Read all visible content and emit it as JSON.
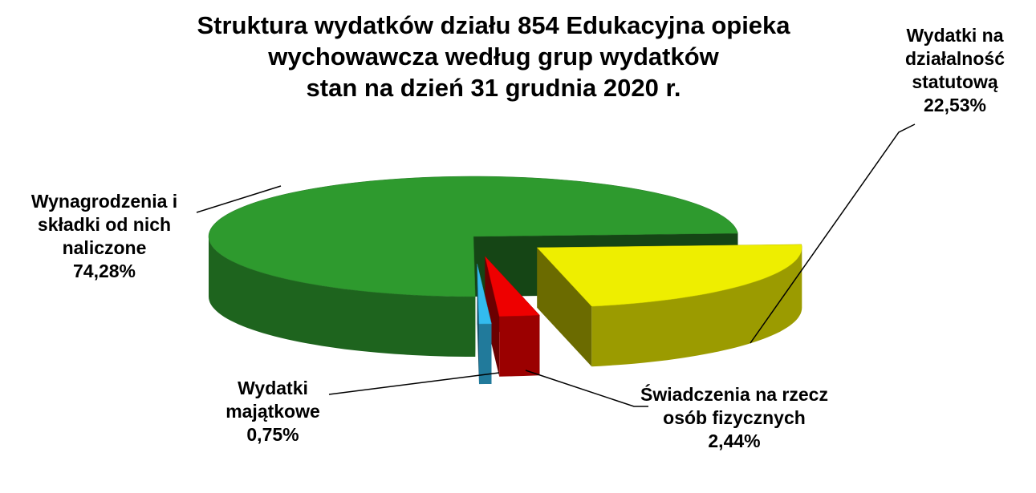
{
  "chart_data": {
    "type": "pie3d",
    "title": [
      "Struktura wydatków działu 854 Edukacyjna opieka",
      "wychowawcza według grup wydatków",
      "stan na dzień 31 grudnia 2020 r."
    ],
    "categories": [
      "Wydatki na działalność statutową",
      "Świadczenia na rzecz osób fizycznych",
      "Wydatki majątkowe",
      "Wynagrodzenia i składki od nich naliczone"
    ],
    "values": [
      22.53,
      2.44,
      0.75,
      74.28
    ],
    "value_labels": [
      "22,53%",
      "2,44%",
      "0,75%",
      "74,28%"
    ],
    "colors": [
      "#eeee00",
      "#ee0000",
      "#33bbee",
      "#2e9a2e"
    ]
  }
}
